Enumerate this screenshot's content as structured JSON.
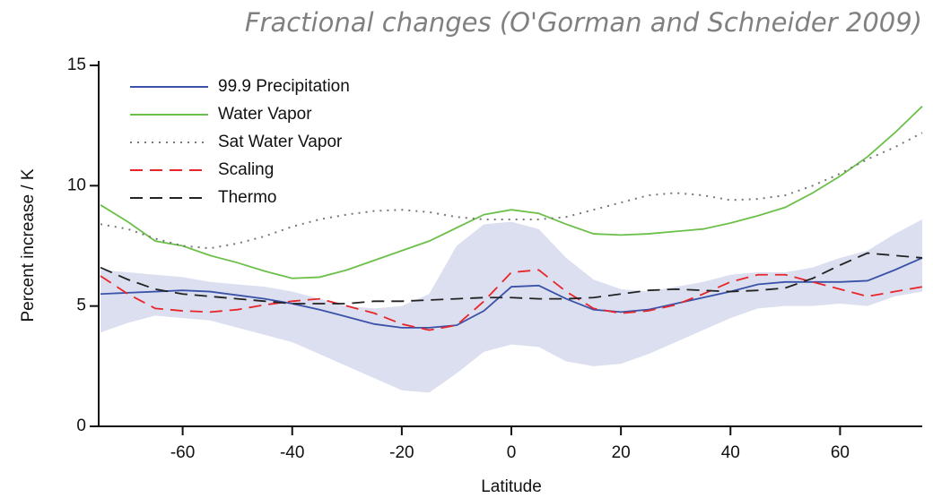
{
  "chart_data": {
    "type": "line",
    "title": "Fractional changes (O'Gorman and Schneider 2009)",
    "xlabel": "Latitude",
    "ylabel": "Percent increase / K",
    "x": [
      -75,
      -70,
      -65,
      -60,
      -55,
      -50,
      -45,
      -40,
      -35,
      -30,
      -25,
      -20,
      -15,
      -10,
      -5,
      0,
      5,
      10,
      15,
      20,
      25,
      30,
      35,
      40,
      45,
      50,
      55,
      60,
      65,
      70,
      75
    ],
    "xlim": [
      -75,
      75
    ],
    "xticks": [
      -60,
      -40,
      -20,
      0,
      20,
      40,
      60
    ],
    "ylim": [
      0,
      15
    ],
    "yticks": [
      0,
      5,
      10,
      15
    ],
    "band": {
      "color": "#dcdff0",
      "upper": [
        6.5,
        6.4,
        6.3,
        6.2,
        6.0,
        5.9,
        5.8,
        5.6,
        5.3,
        5.0,
        4.9,
        5.0,
        5.5,
        7.5,
        8.4,
        8.5,
        8.2,
        7.0,
        6.1,
        5.7,
        5.6,
        5.8,
        6.0,
        6.3,
        6.4,
        6.4,
        6.6,
        7.0,
        7.3,
        8.0,
        8.6
      ],
      "lower": [
        3.9,
        4.3,
        4.6,
        4.5,
        4.4,
        4.1,
        3.8,
        3.5,
        3.0,
        2.5,
        2.0,
        1.5,
        1.4,
        2.2,
        3.1,
        3.4,
        3.3,
        2.7,
        2.5,
        2.6,
        3.0,
        3.5,
        4.0,
        4.5,
        4.9,
        5.0,
        5.0,
        5.1,
        5.0,
        5.4,
        5.6
      ]
    },
    "series": [
      {
        "name": "99.9 Precipitation",
        "color": "#3a52a8",
        "dash": "solid",
        "values": [
          5.5,
          5.55,
          5.6,
          5.65,
          5.6,
          5.45,
          5.3,
          5.1,
          4.85,
          4.55,
          4.25,
          4.1,
          4.1,
          4.2,
          4.8,
          5.8,
          5.85,
          5.3,
          4.85,
          4.75,
          4.85,
          5.1,
          5.35,
          5.6,
          5.9,
          6.0,
          6.0,
          6.0,
          6.05,
          6.5,
          7.0
        ]
      },
      {
        "name": "Water Vapor",
        "color": "#6cc04a",
        "dash": "solid",
        "values": [
          9.2,
          8.5,
          7.7,
          7.5,
          7.1,
          6.8,
          6.45,
          6.15,
          6.2,
          6.5,
          6.9,
          7.3,
          7.7,
          8.25,
          8.8,
          9.0,
          8.85,
          8.4,
          8.0,
          7.95,
          8.0,
          8.1,
          8.2,
          8.45,
          8.75,
          9.1,
          9.7,
          10.4,
          11.2,
          12.2,
          13.3
        ]
      },
      {
        "name": "Sat Water Vapor",
        "color": "#777777",
        "dash": "dotted",
        "values": [
          8.4,
          8.2,
          7.8,
          7.5,
          7.4,
          7.6,
          7.9,
          8.3,
          8.6,
          8.8,
          8.95,
          9.0,
          8.9,
          8.7,
          8.6,
          8.6,
          8.6,
          8.7,
          9.0,
          9.3,
          9.6,
          9.7,
          9.6,
          9.4,
          9.45,
          9.6,
          10.0,
          10.5,
          11.1,
          11.6,
          12.2
        ]
      },
      {
        "name": "Scaling",
        "color": "#e8262a",
        "dash": "dashed",
        "values": [
          6.25,
          5.5,
          4.9,
          4.8,
          4.75,
          4.85,
          5.05,
          5.2,
          5.3,
          5.0,
          4.7,
          4.25,
          4.0,
          4.2,
          5.2,
          6.4,
          6.5,
          5.6,
          4.9,
          4.7,
          4.8,
          5.05,
          5.5,
          6.0,
          6.3,
          6.3,
          6.0,
          5.7,
          5.4,
          5.6,
          5.8
        ]
      },
      {
        "name": "Thermo",
        "color": "#222222",
        "dash": "dashed",
        "values": [
          6.6,
          6.1,
          5.7,
          5.5,
          5.4,
          5.3,
          5.2,
          5.1,
          5.1,
          5.1,
          5.2,
          5.2,
          5.25,
          5.3,
          5.35,
          5.35,
          5.3,
          5.3,
          5.35,
          5.5,
          5.65,
          5.7,
          5.65,
          5.6,
          5.65,
          5.75,
          6.15,
          6.7,
          7.2,
          7.1,
          7.0
        ]
      }
    ],
    "legend": "upper left"
  }
}
